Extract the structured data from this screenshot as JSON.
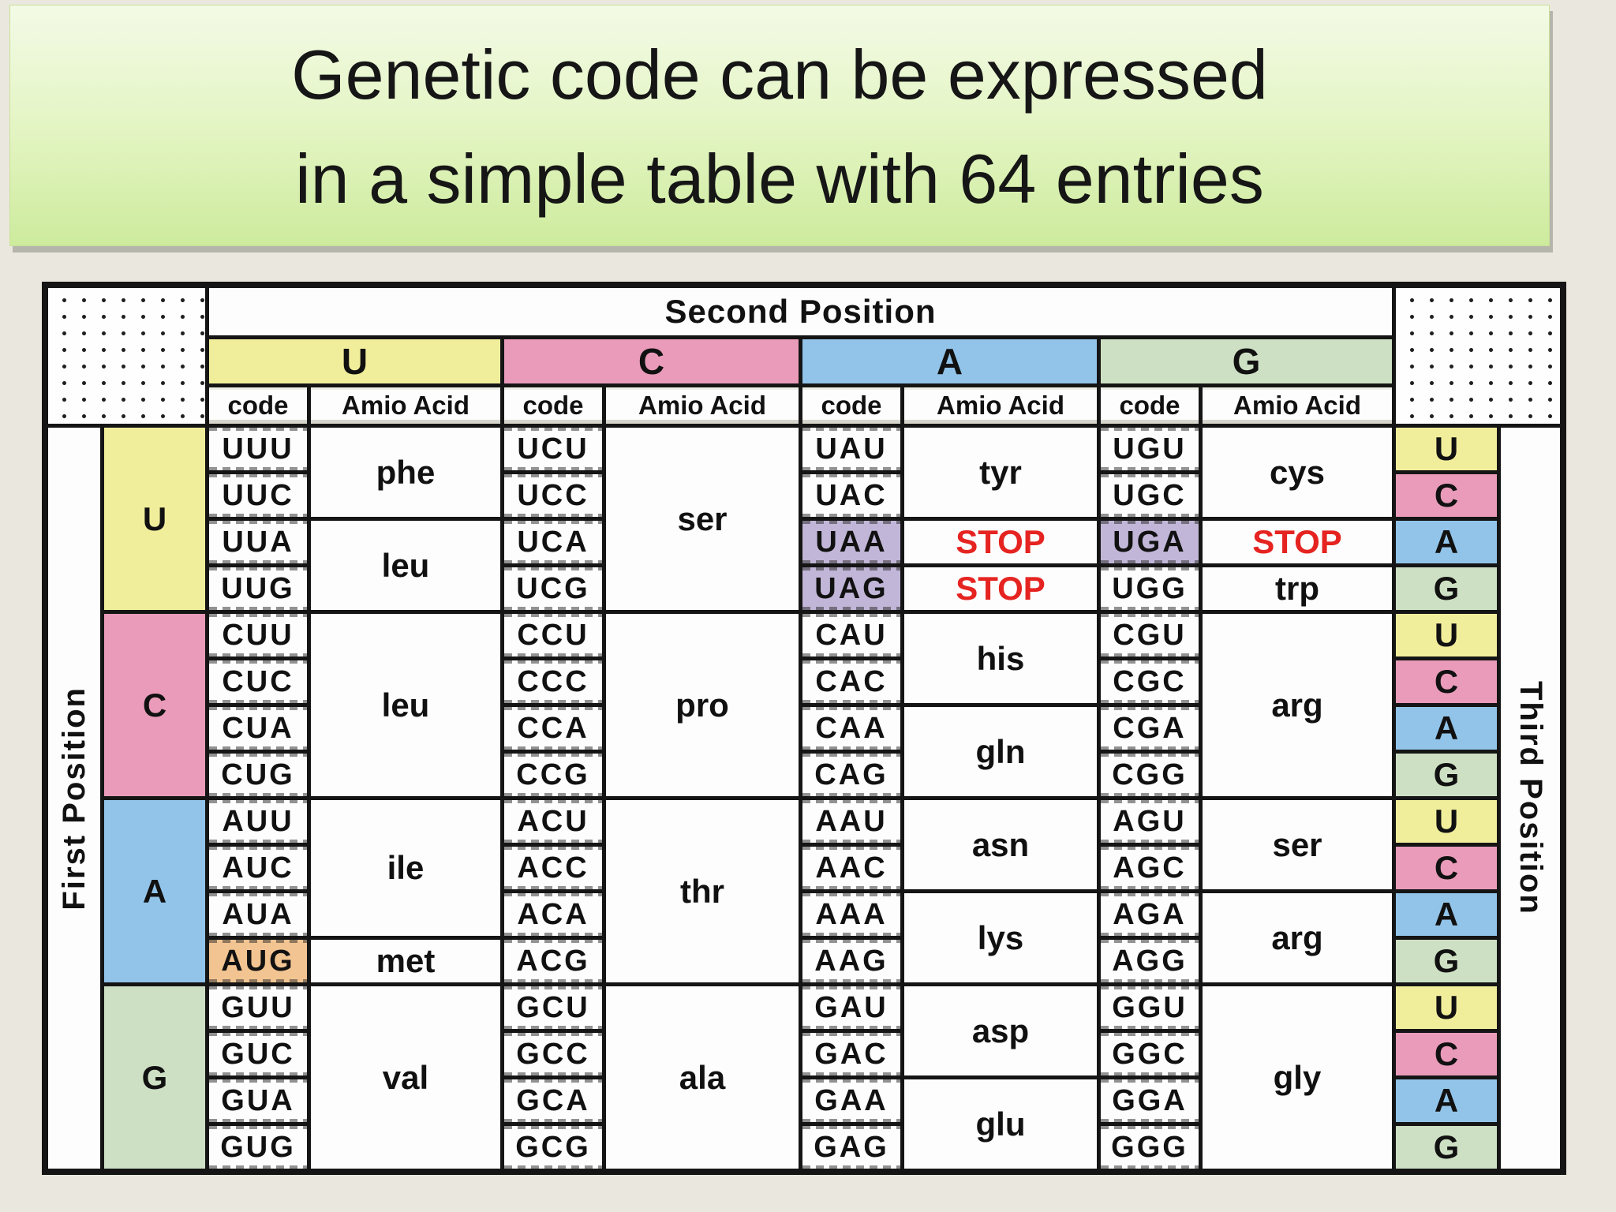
{
  "title": {
    "line1": "Genetic code can be expressed",
    "line2": "in a simple table with 64 entries"
  },
  "table": {
    "second_position_label": "Second Position",
    "first_position_label": "First Position",
    "third_position_label": "Third Position",
    "bases": [
      "U",
      "C",
      "A",
      "G"
    ],
    "third_cycle": [
      "U",
      "C",
      "A",
      "G"
    ],
    "subheaders": {
      "code": "code",
      "amino": "Amio Acid"
    },
    "colors": {
      "U": "#f0ee9b",
      "C": "#e99bb9",
      "A": "#92c4e9",
      "G": "#cde0c3",
      "stop_bg": "#c1b6d7",
      "met_bg": "#f2c491",
      "stop_text": "#e52421",
      "cell_bg": "#fdfdfd"
    },
    "groups": [
      {
        "first_base": "U",
        "cells": [
          {
            "second": "U",
            "codons": [
              {
                "t": "UUU"
              },
              {
                "t": "UUC"
              },
              {
                "t": "UUA"
              },
              {
                "t": "UUG"
              }
            ],
            "aminos": [
              {
                "t": "phe",
                "span": 2
              },
              {
                "t": "leu",
                "span": 2
              }
            ]
          },
          {
            "second": "C",
            "codons": [
              {
                "t": "UCU"
              },
              {
                "t": "UCC"
              },
              {
                "t": "UCA"
              },
              {
                "t": "UCG"
              }
            ],
            "aminos": [
              {
                "t": "ser",
                "span": 4
              }
            ]
          },
          {
            "second": "A",
            "codons": [
              {
                "t": "UAU"
              },
              {
                "t": "UAC"
              },
              {
                "t": "UAA",
                "bg": "stop"
              },
              {
                "t": "UAG",
                "bg": "stop"
              }
            ],
            "aminos": [
              {
                "t": "tyr",
                "span": 2
              },
              {
                "t": "STOP",
                "span": 1,
                "style": "stop"
              },
              {
                "t": "STOP",
                "span": 1,
                "style": "stop"
              }
            ]
          },
          {
            "second": "G",
            "codons": [
              {
                "t": "UGU"
              },
              {
                "t": "UGC"
              },
              {
                "t": "UGA",
                "bg": "stop"
              },
              {
                "t": "UGG"
              }
            ],
            "aminos": [
              {
                "t": "cys",
                "span": 2
              },
              {
                "t": "STOP",
                "span": 1,
                "style": "stop"
              },
              {
                "t": "trp",
                "span": 1
              }
            ]
          }
        ]
      },
      {
        "first_base": "C",
        "cells": [
          {
            "second": "U",
            "codons": [
              {
                "t": "CUU"
              },
              {
                "t": "CUC"
              },
              {
                "t": "CUA"
              },
              {
                "t": "CUG"
              }
            ],
            "aminos": [
              {
                "t": "leu",
                "span": 4
              }
            ]
          },
          {
            "second": "C",
            "codons": [
              {
                "t": "CCU"
              },
              {
                "t": "CCC"
              },
              {
                "t": "CCA"
              },
              {
                "t": "CCG"
              }
            ],
            "aminos": [
              {
                "t": "pro",
                "span": 4
              }
            ]
          },
          {
            "second": "A",
            "codons": [
              {
                "t": "CAU"
              },
              {
                "t": "CAC"
              },
              {
                "t": "CAA"
              },
              {
                "t": "CAG"
              }
            ],
            "aminos": [
              {
                "t": "his",
                "span": 2
              },
              {
                "t": "gln",
                "span": 2
              }
            ]
          },
          {
            "second": "G",
            "codons": [
              {
                "t": "CGU"
              },
              {
                "t": "CGC"
              },
              {
                "t": "CGA"
              },
              {
                "t": "CGG"
              }
            ],
            "aminos": [
              {
                "t": "arg",
                "span": 4
              }
            ]
          }
        ]
      },
      {
        "first_base": "A",
        "cells": [
          {
            "second": "U",
            "codons": [
              {
                "t": "AUU"
              },
              {
                "t": "AUC"
              },
              {
                "t": "AUA"
              },
              {
                "t": "AUG",
                "bg": "met"
              }
            ],
            "aminos": [
              {
                "t": "ile",
                "span": 3
              },
              {
                "t": "met",
                "span": 1
              }
            ]
          },
          {
            "second": "C",
            "codons": [
              {
                "t": "ACU"
              },
              {
                "t": "ACC"
              },
              {
                "t": "ACA"
              },
              {
                "t": "ACG"
              }
            ],
            "aminos": [
              {
                "t": "thr",
                "span": 4
              }
            ]
          },
          {
            "second": "A",
            "codons": [
              {
                "t": "AAU"
              },
              {
                "t": "AAC"
              },
              {
                "t": "AAA"
              },
              {
                "t": "AAG"
              }
            ],
            "aminos": [
              {
                "t": "asn",
                "span": 2
              },
              {
                "t": "lys",
                "span": 2
              }
            ]
          },
          {
            "second": "G",
            "codons": [
              {
                "t": "AGU"
              },
              {
                "t": "AGC"
              },
              {
                "t": "AGA"
              },
              {
                "t": "AGG"
              }
            ],
            "aminos": [
              {
                "t": "ser",
                "span": 2
              },
              {
                "t": "arg",
                "span": 2
              }
            ]
          }
        ]
      },
      {
        "first_base": "G",
        "cells": [
          {
            "second": "U",
            "codons": [
              {
                "t": "GUU"
              },
              {
                "t": "GUC"
              },
              {
                "t": "GUA"
              },
              {
                "t": "GUG"
              }
            ],
            "aminos": [
              {
                "t": "val",
                "span": 4
              }
            ]
          },
          {
            "second": "C",
            "codons": [
              {
                "t": "GCU"
              },
              {
                "t": "GCC"
              },
              {
                "t": "GCA"
              },
              {
                "t": "GCG"
              }
            ],
            "aminos": [
              {
                "t": "ala",
                "span": 4
              }
            ]
          },
          {
            "second": "A",
            "codons": [
              {
                "t": "GAU"
              },
              {
                "t": "GAC"
              },
              {
                "t": "GAA"
              },
              {
                "t": "GAG"
              }
            ],
            "aminos": [
              {
                "t": "asp",
                "span": 2
              },
              {
                "t": "glu",
                "span": 2
              }
            ]
          },
          {
            "second": "G",
            "codons": [
              {
                "t": "GGU"
              },
              {
                "t": "GGC"
              },
              {
                "t": "GGA"
              },
              {
                "t": "GGG"
              }
            ],
            "aminos": [
              {
                "t": "gly",
                "span": 4
              }
            ]
          }
        ]
      }
    ]
  }
}
